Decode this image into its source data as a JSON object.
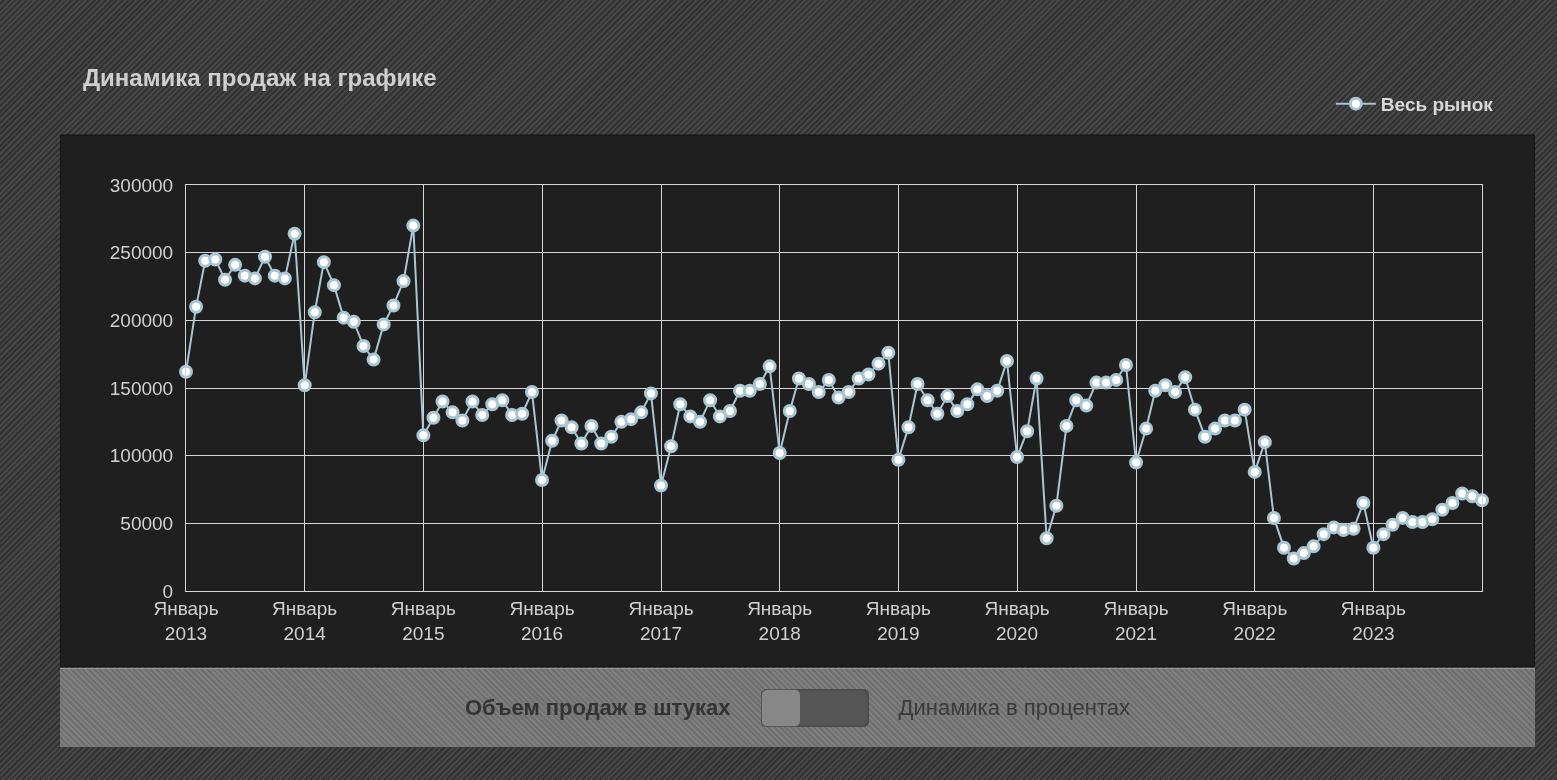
{
  "chart_data": {
    "type": "line",
    "title": "Динамика продаж на графике",
    "annotations": [
      "Объем продаж в штуках",
      "Динамика в процентах"
    ],
    "x": [
      "2013-01",
      "2013-02",
      "2013-03",
      "2013-04",
      "2013-05",
      "2013-06",
      "2013-07",
      "2013-08",
      "2013-09",
      "2013-10",
      "2013-11",
      "2013-12",
      "2014-01",
      "2014-02",
      "2014-03",
      "2014-04",
      "2014-05",
      "2014-06",
      "2014-07",
      "2014-08",
      "2014-09",
      "2014-10",
      "2014-11",
      "2014-12",
      "2015-01",
      "2015-02",
      "2015-03",
      "2015-04",
      "2015-05",
      "2015-06",
      "2015-07",
      "2015-08",
      "2015-09",
      "2015-10",
      "2015-11",
      "2015-12",
      "2016-01",
      "2016-02",
      "2016-03",
      "2016-04",
      "2016-05",
      "2016-06",
      "2016-07",
      "2016-08",
      "2016-09",
      "2016-10",
      "2016-11",
      "2016-12",
      "2017-01",
      "2017-02",
      "2017-03",
      "2017-04",
      "2017-05",
      "2017-06",
      "2017-07",
      "2017-08",
      "2017-09",
      "2017-10",
      "2017-11",
      "2017-12",
      "2018-01",
      "2018-02",
      "2018-03",
      "2018-04",
      "2018-05",
      "2018-06",
      "2018-07",
      "2018-08",
      "2018-09",
      "2018-10",
      "2018-11",
      "2018-12",
      "2019-01",
      "2019-02",
      "2019-03",
      "2019-04",
      "2019-05",
      "2019-06",
      "2019-07",
      "2019-08",
      "2019-09",
      "2019-10",
      "2019-11",
      "2019-12",
      "2020-01",
      "2020-02",
      "2020-03",
      "2020-04",
      "2020-05",
      "2020-06",
      "2020-07",
      "2020-08",
      "2020-09",
      "2020-10",
      "2020-11",
      "2020-12",
      "2021-01",
      "2021-02",
      "2021-03",
      "2021-04",
      "2021-05",
      "2021-06",
      "2021-07",
      "2021-08",
      "2021-09",
      "2021-10",
      "2021-11",
      "2021-12",
      "2022-01",
      "2022-02",
      "2022-03",
      "2022-04",
      "2022-05",
      "2022-06",
      "2022-07",
      "2022-08",
      "2022-09",
      "2022-10",
      "2022-11",
      "2022-12",
      "2023-01",
      "2023-02",
      "2023-03",
      "2023-04",
      "2023-05",
      "2023-06",
      "2023-07",
      "2023-08",
      "2023-09",
      "2023-10",
      "2023-11",
      "2023-12"
    ],
    "series": [
      {
        "name": "Весь рынок",
        "color": "#a9c6d2",
        "values": [
          162000,
          210000,
          244000,
          245000,
          230000,
          241000,
          233000,
          231000,
          247000,
          233000,
          231000,
          264000,
          152000,
          206000,
          243000,
          226000,
          202000,
          199000,
          181000,
          171000,
          197000,
          211000,
          229000,
          270000,
          115000,
          128000,
          140000,
          132000,
          126000,
          140000,
          130000,
          138000,
          141000,
          130000,
          131000,
          147000,
          82000,
          111000,
          126000,
          121000,
          109000,
          122000,
          109000,
          114000,
          125000,
          127000,
          132000,
          146000,
          78000,
          107000,
          138000,
          129000,
          125000,
          141000,
          129000,
          133000,
          148000,
          148000,
          153000,
          166000,
          102000,
          133000,
          157000,
          153000,
          147000,
          156000,
          143000,
          147000,
          157000,
          160000,
          168000,
          176000,
          97000,
          121000,
          153000,
          141000,
          131000,
          144000,
          133000,
          138000,
          149000,
          144000,
          148000,
          170000,
          99000,
          118000,
          157000,
          39000,
          63000,
          122000,
          141000,
          137000,
          154000,
          154000,
          156000,
          167000,
          95000,
          120000,
          148000,
          152000,
          147000,
          158000,
          134000,
          114000,
          120000,
          126000,
          126000,
          134000,
          88000,
          110000,
          54000,
          32000,
          24000,
          28000,
          33000,
          42000,
          47000,
          45000,
          46000,
          65000,
          32000,
          42000,
          49000,
          54000,
          51000,
          51000,
          53000,
          60000,
          65000,
          72000,
          70000,
          67000
        ]
      }
    ],
    "xlim": [
      "2013-01",
      "2023-12"
    ],
    "xticks": [
      {
        "value": "2013-01",
        "label": "Январь\n2013"
      },
      {
        "value": "2014-01",
        "label": "Январь\n2014"
      },
      {
        "value": "2015-01",
        "label": "Январь\n2015"
      },
      {
        "value": "2016-01",
        "label": "Январь\n2016"
      },
      {
        "value": "2017-01",
        "label": "Январь\n2017"
      },
      {
        "value": "2018-01",
        "label": "Январь\n2018"
      },
      {
        "value": "2019-01",
        "label": "Январь\n2019"
      },
      {
        "value": "2020-01",
        "label": "Январь\n2020"
      },
      {
        "value": "2021-01",
        "label": "Январь\n2021"
      },
      {
        "value": "2022-01",
        "label": "Январь\n2022"
      },
      {
        "value": "2023-01",
        "label": "Январь\n2023"
      }
    ],
    "ylim": [
      0,
      300000
    ],
    "yticks": [
      0,
      50000,
      100000,
      150000,
      200000,
      250000,
      300000
    ],
    "grid": true,
    "legend": "top right",
    "marker": "circle",
    "line_style": "solid"
  }
}
